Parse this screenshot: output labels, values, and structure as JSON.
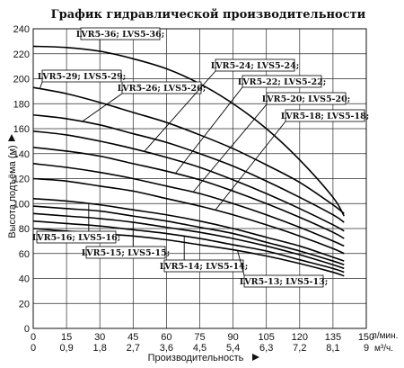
{
  "chart_data": {
    "type": "line",
    "title": "График гидравлической производительности",
    "ylabel": "Высота подъёма (м)",
    "xlabel": "Производительность",
    "x_unit_lpm": "л/мин.",
    "x_unit_m3h": "м³/ч.",
    "xlim": [
      0,
      150
    ],
    "ylim": [
      0,
      240
    ],
    "x_ticks_lpm": [
      "0",
      "15",
      "30",
      "45",
      "60",
      "75",
      "90",
      "105",
      "120",
      "135",
      "150"
    ],
    "x_ticks_m3h": [
      "0",
      "0,9",
      "1,8",
      "2,7",
      "3,6",
      "4,5",
      "5,4",
      "6,3",
      "7,2",
      "8,1",
      "9"
    ],
    "y_ticks": [
      "0",
      "20",
      "40",
      "60",
      "80",
      "100",
      "120",
      "140",
      "160",
      "180",
      "200",
      "220",
      "240"
    ],
    "grid": true,
    "series": [
      {
        "id": "lvr36",
        "x": [
          0,
          15,
          30,
          45,
          60,
          75,
          90,
          105,
          120,
          135,
          140
        ],
        "values": [
          226,
          225,
          222,
          216,
          208,
          196,
          180,
          160,
          135,
          105,
          90
        ]
      },
      {
        "id": "lvr32",
        "x": [
          0,
          15,
          30,
          45,
          60,
          75,
          90,
          105,
          120,
          135,
          140
        ],
        "values": [
          193,
          188,
          181,
          173,
          165,
          155,
          144,
          131,
          117,
          99,
          92
        ]
      },
      {
        "id": "lvr29",
        "x": [
          0,
          15,
          30,
          45,
          60,
          75,
          90,
          105,
          120,
          135,
          140
        ],
        "values": [
          171,
          168,
          163,
          156,
          149,
          140,
          130,
          118,
          105,
          91,
          85
        ]
      },
      {
        "id": "lvr26",
        "x": [
          0,
          15,
          30,
          45,
          60,
          75,
          90,
          105,
          120,
          135,
          140
        ],
        "values": [
          158,
          155,
          150,
          144,
          137,
          129,
          119,
          108,
          96,
          83,
          78
        ]
      },
      {
        "id": "lvr24",
        "x": [
          0,
          15,
          30,
          45,
          60,
          75,
          90,
          105,
          120,
          135,
          140
        ],
        "values": [
          145,
          142,
          138,
          132,
          126,
          119,
          110,
          100,
          89,
          77,
          72
        ]
      },
      {
        "id": "lvr22",
        "x": [
          0,
          15,
          30,
          45,
          60,
          75,
          90,
          105,
          120,
          135,
          140
        ],
        "values": [
          132,
          129,
          125,
          120,
          114,
          108,
          100,
          91,
          81,
          70,
          66
        ]
      },
      {
        "id": "lvr20",
        "x": [
          0,
          15,
          30,
          45,
          60,
          75,
          90,
          105,
          120,
          135,
          140
        ],
        "values": [
          120,
          118,
          114,
          110,
          104,
          98,
          91,
          83,
          74,
          64,
          60
        ]
      },
      {
        "id": "lvr18",
        "x": [
          0,
          15,
          30,
          45,
          60,
          75,
          90,
          105,
          120,
          135,
          140
        ],
        "values": [
          104,
          102,
          99,
          95,
          91,
          86,
          80,
          73,
          66,
          57,
          54
        ]
      },
      {
        "id": "lvr16",
        "x": [
          0,
          15,
          30,
          45,
          60,
          75,
          90,
          105,
          120,
          135,
          140
        ],
        "values": [
          98,
          96,
          94,
          90,
          86,
          81,
          76,
          69,
          62,
          54,
          51
        ]
      },
      {
        "id": "lvr15",
        "x": [
          0,
          15,
          30,
          45,
          60,
          75,
          90,
          105,
          120,
          135,
          140
        ],
        "values": [
          92,
          90,
          88,
          85,
          81,
          77,
          72,
          66,
          59,
          51,
          48
        ]
      },
      {
        "id": "lvr14",
        "x": [
          0,
          15,
          30,
          45,
          60,
          75,
          90,
          105,
          120,
          135,
          140
        ],
        "values": [
          86,
          84,
          82,
          79,
          76,
          72,
          67,
          62,
          55,
          48,
          45
        ]
      },
      {
        "id": "lvr13",
        "x": [
          0,
          15,
          30,
          45,
          60,
          75,
          90,
          105,
          120,
          135,
          140
        ],
        "values": [
          80,
          78,
          76,
          74,
          71,
          67,
          63,
          58,
          52,
          45,
          42
        ]
      }
    ],
    "annotations": [
      {
        "text": "LVR5-36; LVS5-36;",
        "series": "lvr36",
        "at_x": 30
      },
      {
        "text": "LVR5-29; LVS5-29;",
        "series": "lvr32",
        "at_x": 3
      },
      {
        "text": "LVR5-26; LVS5-26;",
        "series": "lvr29",
        "at_x": 22
      },
      {
        "text": "LVR5-24; LVS5-24;",
        "series": "lvr26",
        "at_x": 50
      },
      {
        "text": "LVR5-22; LVS5-22;",
        "series": "lvr24",
        "at_x": 64
      },
      {
        "text": "LVR5-20; LVS5-20;",
        "series": "lvr22",
        "at_x": 72
      },
      {
        "text": "LVR5-18; LVS5-18;",
        "series": "lvr20",
        "at_x": 82
      },
      {
        "text": "LVR5-16; LVS5-16;",
        "series": "lvr18",
        "at_x": 25
      },
      {
        "text": "LVR5-15; LVS5-15;",
        "series": "lvr15",
        "at_x": 45
      },
      {
        "text": "LVR5-14; LVS5-14;",
        "series": "lvr14",
        "at_x": 68
      },
      {
        "text": "LVR5-13; LVS5-13;",
        "series": "lvr13",
        "at_x": 92
      }
    ]
  }
}
